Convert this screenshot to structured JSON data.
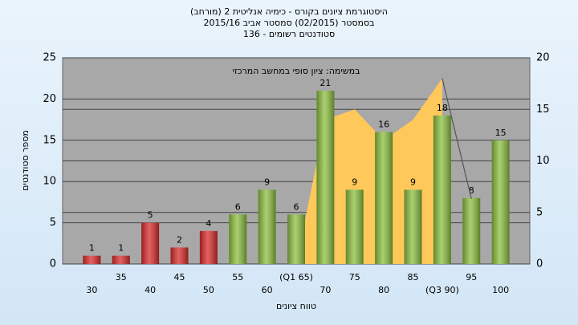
{
  "chart_data": {
    "type": "bar",
    "title": [
      "היסטוגרמת ציונים בקורס - כימיה אנליטית 2 (מורחב)",
      "בסמסטר  (02/2015)  סמסטר אביב 2015/16",
      "סטודנטים רשומים - 136"
    ],
    "annotation": "במשימה: ציון סופי במחשב המרכזי",
    "x_label": "טווח ציונים",
    "y_label": "מספר סטודנטים",
    "categories": [
      "30",
      "35",
      "40",
      "45",
      "50",
      "55",
      "60",
      "(Q1 65)",
      "70",
      "75",
      "80",
      "85",
      "(Q3 90)",
      "95",
      "100"
    ],
    "series": [
      {
        "type": "bar",
        "values": [
          1,
          1,
          5,
          2,
          4,
          6,
          9,
          6,
          21,
          9,
          16,
          9,
          18,
          8,
          15
        ],
        "colors": [
          "#d92b2b",
          "#d92b2b",
          "#d92b2b",
          "#d92b2b",
          "#d92b2b",
          "#8cbf3f",
          "#8cbf3f",
          "#8cbf3f",
          "#8cbf3f",
          "#8cbf3f",
          "#8cbf3f",
          "#8cbf3f",
          "#8cbf3f",
          "#8cbf3f",
          "#8cbf3f"
        ]
      },
      {
        "type": "area",
        "axis": "y2",
        "color": "#ffc85a",
        "values": [
          null,
          null,
          null,
          null,
          null,
          null,
          null,
          0,
          14,
          15,
          12,
          14,
          18,
          null,
          null
        ]
      },
      {
        "type": "line",
        "axis": "y2",
        "color": "#555555",
        "values": [
          null,
          null,
          null,
          null,
          null,
          null,
          null,
          null,
          null,
          null,
          null,
          null,
          18,
          6.3,
          null
        ]
      }
    ],
    "ylim": [
      0,
      25
    ],
    "yticks": [
      0,
      5,
      10,
      15,
      20,
      25
    ],
    "y2lim": [
      0,
      20
    ],
    "y2ticks": [
      0,
      5,
      10,
      15,
      20
    ],
    "grid": true
  }
}
